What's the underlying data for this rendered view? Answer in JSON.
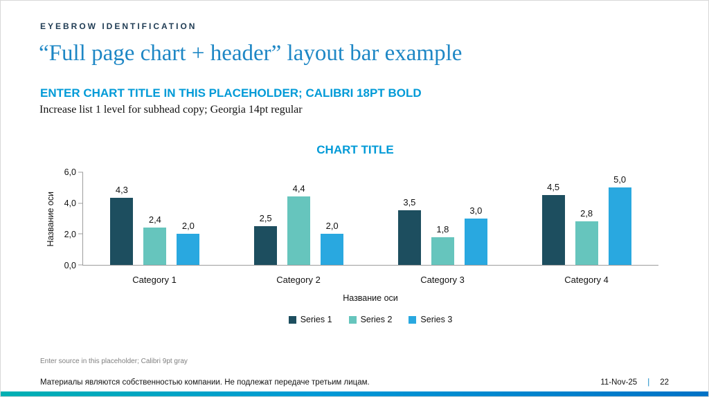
{
  "slide": {
    "eyebrow": "EYEBROW IDENTIFICATION",
    "title": "“Full page chart + header” layout bar example",
    "subhead_bold": "ENTER CHART TITLE IN THIS PLACEHOLDER; CALIBRI 18PT BOLD",
    "subhead_regular": "Increase list 1 level for subhead copy; Georgia 14pt regular",
    "source": "Enter source in this placeholder; Calibri 9pt gray",
    "footer_left": "Материалы являются собственностью компании. Не подлежат передаче третьим лицам.",
    "footer_date": "11-Nov-25",
    "footer_separator": "|",
    "footer_page": "22"
  },
  "chart_data": {
    "type": "bar",
    "title": "CHART TITLE",
    "categories": [
      "Category 1",
      "Category 2",
      "Category 3",
      "Category 4"
    ],
    "series": [
      {
        "name": "Series 1",
        "color": "#1d4e5f",
        "values": [
          4.3,
          2.5,
          3.5,
          4.5
        ]
      },
      {
        "name": "Series 2",
        "color": "#66c5bd",
        "values": [
          2.4,
          4.4,
          1.8,
          2.8
        ]
      },
      {
        "name": "Series 3",
        "color": "#29a8e0",
        "values": [
          2.0,
          2.0,
          3.0,
          5.0
        ]
      }
    ],
    "value_labels": [
      [
        "4,3",
        "2,5",
        "3,5",
        "4,5"
      ],
      [
        "2,4",
        "4,4",
        "1,8",
        "2,8"
      ],
      [
        "2,0",
        "2,0",
        "3,0",
        "5,0"
      ]
    ],
    "xlabel": "Название оси",
    "ylabel": "Название оси",
    "ylim": [
      0,
      6
    ],
    "yticks": [
      "0,0",
      "2,0",
      "4,0",
      "6,0"
    ],
    "grid": false,
    "legend_position": "bottom"
  }
}
